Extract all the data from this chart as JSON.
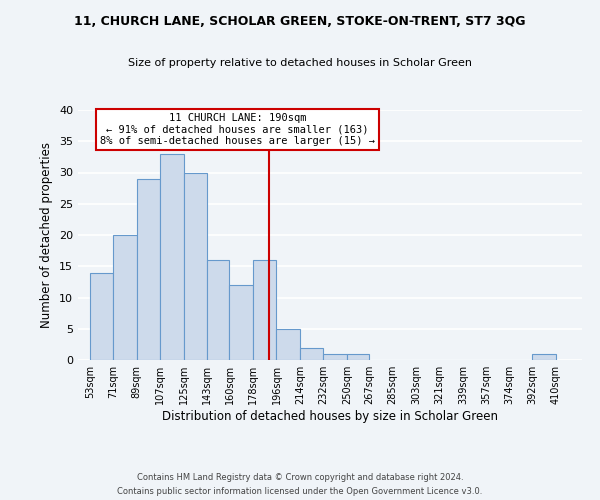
{
  "title": "11, CHURCH LANE, SCHOLAR GREEN, STOKE-ON-TRENT, ST7 3QG",
  "subtitle": "Size of property relative to detached houses in Scholar Green",
  "xlabel": "Distribution of detached houses by size in Scholar Green",
  "ylabel": "Number of detached properties",
  "bar_left_edges": [
    53,
    71,
    89,
    107,
    125,
    143,
    160,
    178,
    196,
    214,
    232,
    250,
    267,
    285,
    303,
    321,
    339,
    357,
    374,
    392
  ],
  "bar_heights": [
    14,
    20,
    29,
    33,
    30,
    16,
    12,
    16,
    5,
    2,
    1,
    1,
    0,
    0,
    0,
    0,
    0,
    0,
    0,
    1
  ],
  "bar_widths": [
    18,
    18,
    18,
    18,
    18,
    17,
    18,
    18,
    18,
    18,
    18,
    17,
    18,
    18,
    18,
    18,
    18,
    17,
    18,
    18
  ],
  "bar_color": "#cddaeb",
  "bar_edge_color": "#6699cc",
  "tick_labels": [
    "53sqm",
    "71sqm",
    "89sqm",
    "107sqm",
    "125sqm",
    "143sqm",
    "160sqm",
    "178sqm",
    "196sqm",
    "214sqm",
    "232sqm",
    "250sqm",
    "267sqm",
    "285sqm",
    "303sqm",
    "321sqm",
    "339sqm",
    "357sqm",
    "374sqm",
    "392sqm",
    "410sqm"
  ],
  "tick_positions": [
    53,
    71,
    89,
    107,
    125,
    143,
    160,
    178,
    196,
    214,
    232,
    250,
    267,
    285,
    303,
    321,
    339,
    357,
    374,
    392,
    410
  ],
  "ylim": [
    0,
    40
  ],
  "yticks": [
    0,
    5,
    10,
    15,
    20,
    25,
    30,
    35,
    40
  ],
  "vline_x": 190,
  "vline_color": "#cc0000",
  "annotation_title": "11 CHURCH LANE: 190sqm",
  "annotation_line1": "← 91% of detached houses are smaller (163)",
  "annotation_line2": "8% of semi-detached houses are larger (15) →",
  "bg_color": "#f0f4f8",
  "grid_color": "#ffffff",
  "footer1": "Contains HM Land Registry data © Crown copyright and database right 2024.",
  "footer2": "Contains public sector information licensed under the Open Government Licence v3.0."
}
